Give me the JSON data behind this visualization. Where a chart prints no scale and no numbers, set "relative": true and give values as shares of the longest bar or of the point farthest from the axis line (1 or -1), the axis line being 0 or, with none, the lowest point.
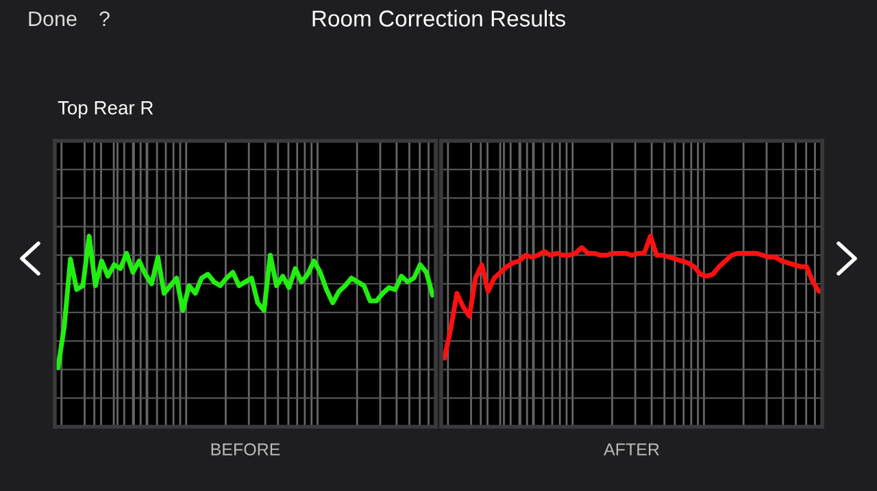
{
  "chart_data": [
    {
      "type": "line",
      "title": "Room Correction Results",
      "subtitle": "Top Rear R",
      "annotations": [
        "Done",
        "?"
      ],
      "xlabel": "BEFORE",
      "relative": true,
      "grid": true,
      "categories": [
        null,
        null,
        null,
        null,
        null,
        null,
        null,
        null,
        null,
        null,
        null,
        null,
        null,
        null,
        null,
        null,
        null,
        null,
        null,
        null,
        null,
        null,
        null,
        null,
        null,
        null,
        null,
        null,
        null,
        null,
        null,
        null,
        null,
        null,
        null,
        null,
        null,
        null,
        null,
        null,
        null,
        null,
        null,
        null,
        null,
        null,
        null,
        null,
        null,
        null,
        null,
        null,
        null,
        null,
        null,
        null,
        null,
        null,
        null,
        null,
        null
      ],
      "series": [
        {
          "color": "#22ee11",
          "values": [
            0.31,
            0.52,
            0.88,
            0.72,
            0.74,
            1.0,
            0.74,
            0.87,
            0.79,
            0.85,
            0.83,
            0.91,
            0.81,
            0.87,
            0.8,
            0.75,
            0.89,
            0.7,
            0.74,
            0.78,
            0.61,
            0.74,
            0.7,
            0.78,
            0.8,
            0.76,
            0.74,
            0.78,
            0.81,
            0.74,
            0.76,
            0.78,
            0.65,
            0.61,
            0.9,
            0.74,
            0.79,
            0.73,
            0.83,
            0.76,
            0.8,
            0.87,
            0.81,
            0.72,
            0.65,
            0.71,
            0.74,
            0.78,
            0.76,
            0.74,
            0.66,
            0.66,
            0.7,
            0.73,
            0.72,
            0.79,
            0.76,
            0.78,
            0.85,
            0.81,
            0.69
          ]
        }
      ]
    },
    {
      "type": "line",
      "xlabel": "AFTER",
      "relative": true,
      "grid": true,
      "categories": [
        null,
        null,
        null,
        null,
        null,
        null,
        null,
        null,
        null,
        null,
        null,
        null,
        null,
        null,
        null,
        null,
        null,
        null,
        null,
        null,
        null,
        null,
        null,
        null,
        null,
        null,
        null,
        null,
        null,
        null,
        null,
        null,
        null,
        null,
        null,
        null,
        null,
        null,
        null,
        null,
        null,
        null,
        null,
        null,
        null,
        null,
        null,
        null,
        null,
        null,
        null,
        null,
        null,
        null,
        null,
        null,
        null,
        null,
        null,
        null,
        null
      ],
      "series": [
        {
          "color": "#ff1111",
          "values": [
            0.36,
            0.51,
            0.7,
            0.63,
            0.58,
            0.78,
            0.85,
            0.71,
            0.78,
            0.81,
            0.84,
            0.86,
            0.87,
            0.9,
            0.89,
            0.9,
            0.92,
            0.9,
            0.91,
            0.9,
            0.9,
            0.91,
            0.94,
            0.91,
            0.91,
            0.9,
            0.9,
            0.91,
            0.91,
            0.91,
            0.9,
            0.91,
            0.91,
            1.0,
            0.9,
            0.9,
            0.89,
            0.88,
            0.87,
            0.86,
            0.84,
            0.8,
            0.79,
            0.8,
            0.84,
            0.87,
            0.9,
            0.91,
            0.91,
            0.91,
            0.91,
            0.9,
            0.89,
            0.89,
            0.87,
            0.86,
            0.85,
            0.84,
            0.84,
            0.76,
            0.71
          ]
        }
      ]
    }
  ]
}
